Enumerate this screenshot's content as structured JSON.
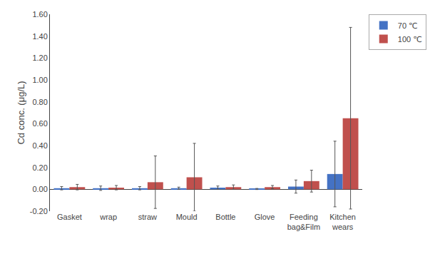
{
  "chart_data": {
    "type": "bar",
    "categories": [
      "Gasket",
      "wrap",
      "straw",
      "Mould",
      "Bottle",
      "Glove",
      "Feeding\nbag&Film",
      "Kitchen\nwears"
    ],
    "series": [
      {
        "name": "70 ℃",
        "color": "#4472C4",
        "values": [
          0.01,
          0.01,
          0.01,
          0.01,
          0.015,
          0.003,
          0.025,
          0.14
        ],
        "errors": [
          0.015,
          0.02,
          0.015,
          0.01,
          0.015,
          0.005,
          0.06,
          0.3
        ]
      },
      {
        "name": "100 ℃",
        "color": "#C0504D",
        "values": [
          0.02,
          0.015,
          0.065,
          0.11,
          0.02,
          0.02,
          0.075,
          0.65
        ],
        "errors": [
          0.025,
          0.02,
          0.24,
          0.31,
          0.02,
          0.015,
          0.1,
          0.83
        ]
      }
    ],
    "ylabel": "Cd conc. (μg/L)",
    "ylim": [
      -0.2,
      1.6
    ],
    "yticks": [
      {
        "value": -0.2,
        "label": "-0.20"
      },
      {
        "value": 0.0,
        "label": "0.00"
      },
      {
        "value": 0.2,
        "label": "0.20"
      },
      {
        "value": 0.4,
        "label": "0.40"
      },
      {
        "value": 0.6,
        "label": "0.60"
      },
      {
        "value": 0.8,
        "label": "0.80"
      },
      {
        "value": 1.0,
        "label": "1.00"
      },
      {
        "value": 1.2,
        "label": "1.20"
      },
      {
        "value": 1.4,
        "label": "1.40"
      },
      {
        "value": 1.6,
        "label": "1.60"
      }
    ],
    "grid": false,
    "legend": "upper right"
  }
}
